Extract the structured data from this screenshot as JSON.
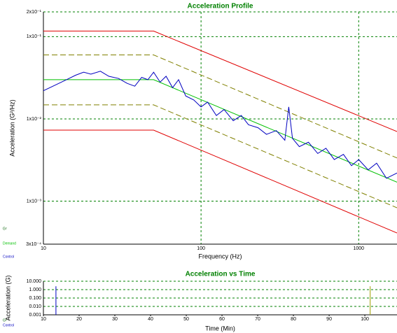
{
  "chart_data": [
    {
      "type": "line",
      "title": "Acceleration Profile",
      "x_label": "Frequency (Hz)",
      "y_label": "Acceleration (G²/Hz)",
      "xlog": true,
      "ylog": true,
      "grid": true,
      "legend_title": "G²",
      "xlim": [
        10,
        1750
      ],
      "ylim": [
        0.0003,
        0.2
      ],
      "xticks": [
        10,
        100,
        1000
      ],
      "yticks": [
        {
          "value": 0.0003,
          "label": "3x10⁻⁴"
        },
        {
          "value": 0.001,
          "label": "1x10⁻³"
        },
        {
          "value": 0.01,
          "label": "1x10⁻²"
        },
        {
          "value": 0.1,
          "label": "1x10⁻¹"
        },
        {
          "value": 0.2,
          "label": "2x10⁻¹"
        }
      ],
      "series": [
        {
          "color": "#e00000",
          "x": [
            10,
            50,
            1750
          ],
          "values": [
            0.117,
            0.117,
            0.00703
          ]
        },
        {
          "color": "#808000",
          "dash": true,
          "x": [
            10,
            50,
            1750
          ],
          "values": [
            0.06,
            0.06,
            0.00335
          ]
        },
        {
          "name": "Demand",
          "color": "#00c000",
          "x": [
            10,
            50,
            1750
          ],
          "values": [
            0.03,
            0.03,
            0.0017
          ]
        },
        {
          "color": "#808000",
          "dash": true,
          "x": [
            10,
            50,
            1750
          ],
          "values": [
            0.0148,
            0.0148,
            0.00083
          ]
        },
        {
          "color": "#e00000",
          "x": [
            10,
            50,
            1750
          ],
          "values": [
            0.0073,
            0.0073,
            0.00041
          ]
        },
        {
          "name": "Control",
          "color": "#0000c0",
          "x": [
            10,
            12,
            14,
            16,
            18,
            20,
            23,
            26,
            30,
            34,
            38,
            42,
            46,
            50,
            55,
            60,
            66,
            72,
            80,
            90,
            100,
            110,
            125,
            140,
            160,
            180,
            200,
            230,
            260,
            300,
            340,
            360,
            380,
            420,
            480,
            550,
            620,
            700,
            800,
            900,
            1000,
            1150,
            1300,
            1500,
            1750
          ],
          "values": [
            0.022,
            0.026,
            0.03,
            0.034,
            0.037,
            0.035,
            0.038,
            0.033,
            0.031,
            0.027,
            0.025,
            0.032,
            0.03,
            0.037,
            0.028,
            0.033,
            0.024,
            0.03,
            0.019,
            0.017,
            0.014,
            0.016,
            0.011,
            0.013,
            0.0095,
            0.011,
            0.0085,
            0.0078,
            0.0065,
            0.0072,
            0.0055,
            0.014,
            0.0058,
            0.0046,
            0.0052,
            0.0038,
            0.0044,
            0.0032,
            0.0037,
            0.0027,
            0.0032,
            0.0024,
            0.0029,
            0.0019,
            0.0022
          ]
        }
      ]
    },
    {
      "type": "line",
      "title": "Acceleration vs Time",
      "x_label": "Time (Min)",
      "y_label": "Acceleration (G)",
      "xlog": false,
      "ylog": true,
      "grid": true,
      "legend_title": "G²",
      "xlim": [
        10,
        109
      ],
      "ylim": [
        0.001,
        10
      ],
      "xticks": [
        10,
        20,
        30,
        40,
        50,
        60,
        70,
        80,
        90,
        100
      ],
      "yticks": [
        0.001,
        {
          "value": 0.01,
          "label": "0.010"
        },
        {
          "value": 0.1,
          "label": "0.100"
        },
        {
          "value": 1,
          "label": "1.000"
        },
        {
          "value": 10,
          "label": "10.000"
        }
      ],
      "series": [
        {
          "name": "Control",
          "color": "#0000c0",
          "x": [
            13.5,
            13.5
          ],
          "values": [
            0.001,
            2.5
          ]
        },
        {
          "color": "#a0a000",
          "x": [
            101.5,
            101.5
          ],
          "values": [
            0.001,
            2.5
          ]
        }
      ]
    }
  ]
}
